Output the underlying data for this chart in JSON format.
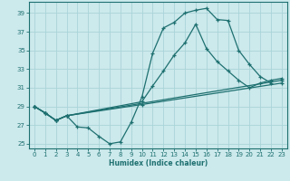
{
  "title": "",
  "xlabel": "Humidex (Indice chaleur)",
  "ylabel": "",
  "xlim": [
    -0.5,
    23.5
  ],
  "ylim": [
    24.5,
    40.2
  ],
  "xticks": [
    0,
    1,
    2,
    3,
    4,
    5,
    6,
    7,
    8,
    9,
    10,
    11,
    12,
    13,
    14,
    15,
    16,
    17,
    18,
    19,
    20,
    21,
    22,
    23
  ],
  "yticks": [
    25,
    27,
    29,
    31,
    33,
    35,
    37,
    39
  ],
  "bg_color": "#cce9ec",
  "grid_color": "#aad4d8",
  "line_color": "#1e7070",
  "lines_data": [
    {
      "x": [
        0,
        1,
        2,
        3,
        4,
        5,
        6,
        7,
        8,
        9,
        10,
        11,
        12,
        13,
        14,
        15,
        16,
        17,
        18,
        19,
        20,
        21,
        22
      ],
      "y": [
        29,
        28.3,
        27.5,
        28.0,
        26.8,
        26.7,
        25.8,
        25.0,
        25.2,
        27.3,
        30.0,
        34.7,
        37.4,
        38.0,
        39.0,
        39.3,
        39.5,
        38.3,
        38.2,
        35.0,
        33.5,
        32.2,
        31.5
      ]
    },
    {
      "x": [
        0,
        1,
        2,
        3,
        10,
        11,
        12,
        13,
        14,
        15,
        16,
        17,
        18,
        19,
        20,
        21,
        22,
        23
      ],
      "y": [
        29,
        28.3,
        27.5,
        28.0,
        29.5,
        31.2,
        32.8,
        34.5,
        35.8,
        37.8,
        35.2,
        33.8,
        32.8,
        31.8,
        31.0,
        31.5,
        31.8,
        32.0
      ]
    },
    {
      "x": [
        0,
        1,
        2,
        3,
        10,
        23
      ],
      "y": [
        29,
        28.3,
        27.5,
        28.0,
        29.2,
        31.5
      ]
    },
    {
      "x": [
        0,
        1,
        2,
        3,
        23
      ],
      "y": [
        29,
        28.3,
        27.5,
        28.0,
        31.8
      ]
    }
  ]
}
